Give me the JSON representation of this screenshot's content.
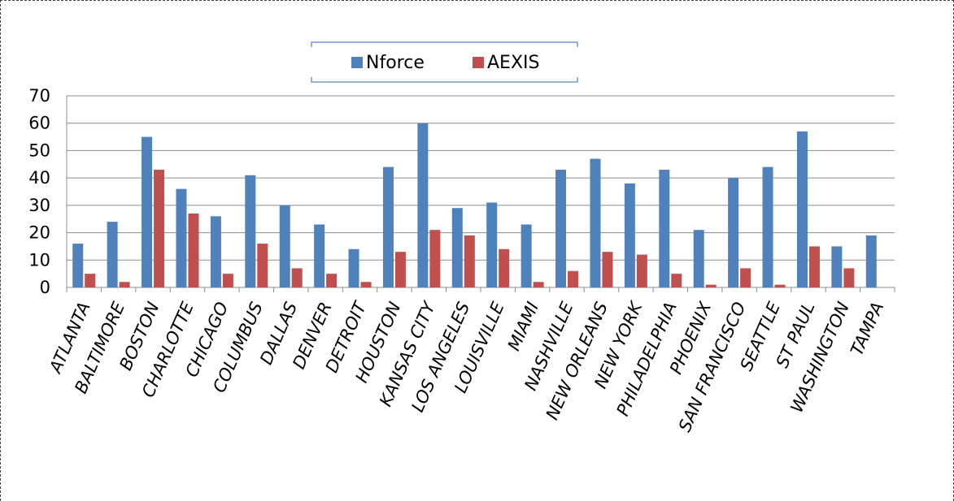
{
  "chart_data": {
    "type": "bar",
    "title": "",
    "xlabel": "",
    "ylabel": "",
    "ylim": [
      0,
      70
    ],
    "yticks": [
      0,
      10,
      20,
      30,
      40,
      50,
      60,
      70
    ],
    "grid": "horizontal",
    "legend_position": "top",
    "categories": [
      "ATLANTA",
      "BALTIMORE",
      "BOSTON",
      "CHARLOTTE",
      "CHICAGO",
      "COLUMBUS",
      "DALLAS",
      "DENVER",
      "DETROIT",
      "HOUSTON",
      "KANSAS CITY",
      "LOS ANGELES",
      "LOUISVILLE",
      "MIAMI",
      "NASHVILLE",
      "NEW ORLEANS",
      "NEW YORK",
      "PHILADELPHIA",
      "PHOENIX",
      "SAN FRANCISCO",
      "SEATTLE",
      "ST PAUL",
      "WASHINGTON",
      "TAMPA"
    ],
    "series": [
      {
        "name": "Nforce",
        "color": "#4F81BD",
        "values": [
          16,
          24,
          55,
          36,
          26,
          41,
          30,
          23,
          14,
          44,
          60,
          29,
          31,
          23,
          43,
          47,
          38,
          43,
          21,
          40,
          44,
          57,
          15,
          19
        ]
      },
      {
        "name": "AEXIS",
        "color": "#C0504D",
        "values": [
          5,
          2,
          43,
          27,
          5,
          16,
          7,
          5,
          2,
          13,
          21,
          19,
          14,
          2,
          6,
          13,
          12,
          5,
          1,
          7,
          1,
          15,
          7,
          0
        ]
      }
    ]
  }
}
